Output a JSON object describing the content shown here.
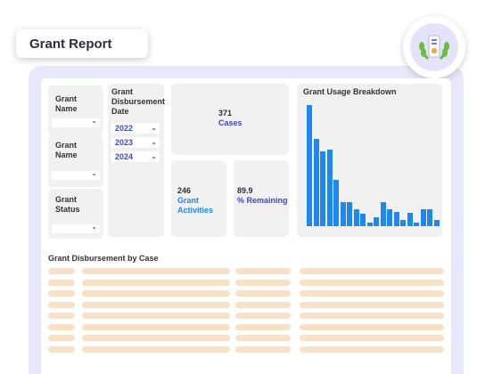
{
  "report_title": "Grant Report",
  "badge_icon": "award-laurel-icon",
  "filters": {
    "grant_name_1": "Grant Name",
    "grant_name_2": "Grant Name",
    "grant_status": "Grant Status",
    "disbursement_date_label": "Grant Disbursement Date",
    "years": [
      "2022",
      "2023",
      "2024"
    ]
  },
  "kpis": {
    "cases_value": "371",
    "cases_label": "Cases",
    "activities_value": "246",
    "activities_label": "Grant Activities",
    "remaining_value": "89.9",
    "remaining_label": "% Remaining"
  },
  "usage_chart": {
    "title": "Grant Usage Breakdown",
    "bar_color": "#1e88f0",
    "chart_data": {
      "type": "bar",
      "values": [
        100,
        72,
        62,
        63,
        38,
        20,
        20,
        14,
        10,
        3,
        7,
        20,
        14,
        12,
        5,
        11,
        3,
        14,
        14,
        5
      ],
      "ylim": [
        0,
        100
      ]
    }
  },
  "table": {
    "title": "Grant Disbursement by Case"
  },
  "colors": {
    "frame": "#e9e7fb",
    "card": "#f1f1f1",
    "placeholder_row": "#f7e2c8",
    "accent_blue": "#3c48c8"
  }
}
